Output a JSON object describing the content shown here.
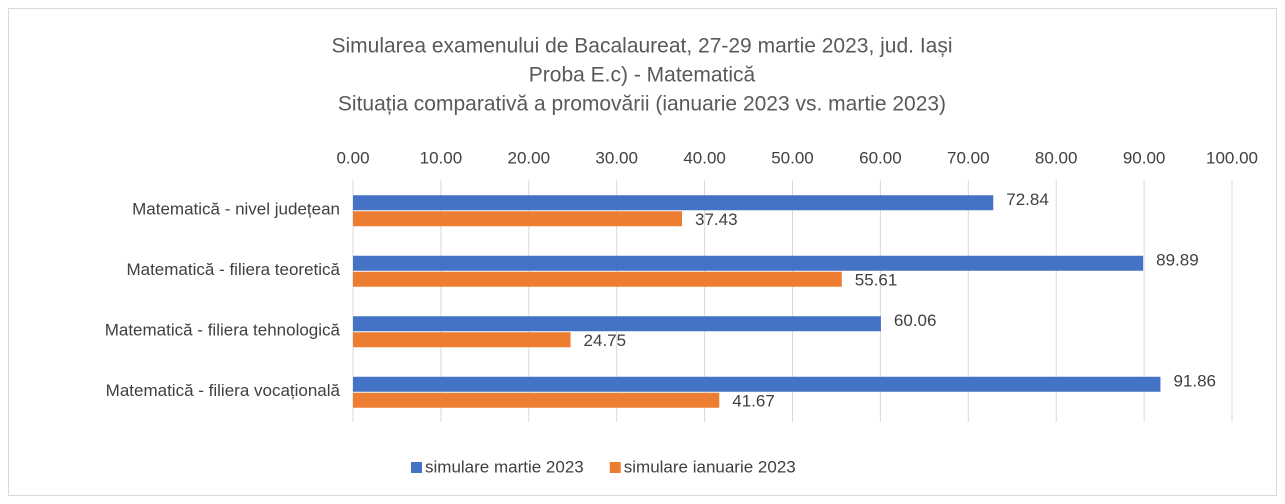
{
  "chart_data": {
    "type": "bar",
    "orientation": "horizontal",
    "title": [
      "Simularea examenului de Bacalaureat, 27-29 martie 2023, jud. Iași",
      "Proba E.c) - Matematică",
      "Situația comparativă a promovării (ianuarie 2023 vs. martie 2023)"
    ],
    "categories": [
      "Matematică - nivel județean",
      "Matematică - filiera teoretică",
      "Matematică - filiera tehnologică",
      "Matematică - filiera vocațională"
    ],
    "series": [
      {
        "name": "simulare martie 2023",
        "color": "#4472c4",
        "values": [
          72.84,
          89.89,
          60.06,
          91.86
        ]
      },
      {
        "name": "simulare ianuarie 2023",
        "color": "#ed7d31",
        "values": [
          37.43,
          55.61,
          24.75,
          41.67
        ]
      }
    ],
    "xlim": [
      0,
      100
    ],
    "xticks": [
      {
        "value": 0,
        "label": "0.00"
      },
      {
        "value": 10,
        "label": "10.00"
      },
      {
        "value": 20,
        "label": "20.00"
      },
      {
        "value": 30,
        "label": "30.00"
      },
      {
        "value": 40,
        "label": "40.00"
      },
      {
        "value": 50,
        "label": "50.00"
      },
      {
        "value": 60,
        "label": "60.00"
      },
      {
        "value": 70,
        "label": "70.00"
      },
      {
        "value": 80,
        "label": "80.00"
      },
      {
        "value": 90,
        "label": "90.00"
      },
      {
        "value": 100,
        "label": "100.00"
      }
    ],
    "grid": true,
    "legend": "bottom"
  }
}
